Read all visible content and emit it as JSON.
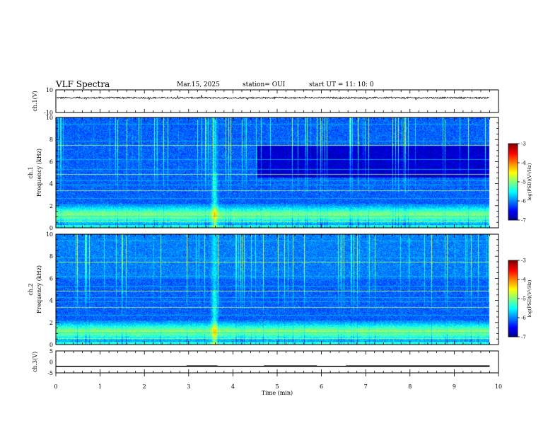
{
  "header": {
    "title": "VLF Spectra",
    "date": "Mar.15, 2025",
    "station": "station= OUI",
    "start": "start  UT  =   11: 10: 0"
  },
  "chart_data": [
    {
      "type": "line",
      "ylabel": "ch.1(V)",
      "ylim": [
        -10,
        10
      ],
      "yticks": [
        "10",
        "-10"
      ],
      "x_range_min": [
        0,
        9.8
      ],
      "description_value": "noisy waveform near +3 V",
      "level": 3
    },
    {
      "type": "heatmap",
      "ylabel_line1": "ch.1",
      "ylabel_line2": "Frequency  (kHz)",
      "ylim": [
        0,
        10
      ],
      "yticks": [
        "0",
        "2",
        "4",
        "6",
        "8",
        "10"
      ],
      "colorbar": {
        "label": "log(PSD)(V²/Hz)",
        "ticks": [
          "-3",
          "-4",
          "-5",
          "-6",
          "-7"
        ],
        "range": [
          -7,
          -3
        ]
      }
    },
    {
      "type": "heatmap",
      "ylabel_line1": "ch.2",
      "ylabel_line2": "Frequency  (kHz)",
      "ylim": [
        0,
        10
      ],
      "yticks": [
        "0",
        "2",
        "4",
        "6",
        "8",
        "10"
      ],
      "colorbar": {
        "label": "log(PSD)(V²/Hz)",
        "ticks": [
          "-3",
          "-4",
          "-5",
          "-6",
          "-7"
        ],
        "range": [
          -7,
          -3
        ]
      }
    },
    {
      "type": "line",
      "ylabel": "ch.3(V)",
      "ylim": [
        -5,
        5
      ],
      "yticks": [
        "5",
        "0",
        "-5"
      ],
      "base_level": -2,
      "high_segments": [
        [
          2.95,
          3.65
        ],
        [
          4.7,
          5.9
        ],
        [
          6.55,
          9.8
        ]
      ],
      "high_level": -1.6
    }
  ],
  "xaxis": {
    "label": "Time  (min)",
    "ticks": [
      "0",
      "1",
      "2",
      "3",
      "4",
      "5",
      "6",
      "7",
      "8",
      "9",
      "10"
    ],
    "range": [
      0,
      10
    ]
  },
  "colors": {
    "cmap": [
      "#00007f",
      "#0000ff",
      "#0080ff",
      "#00ffff",
      "#80ff80",
      "#ffff00",
      "#ff8000",
      "#ff0000",
      "#7f0000"
    ]
  }
}
